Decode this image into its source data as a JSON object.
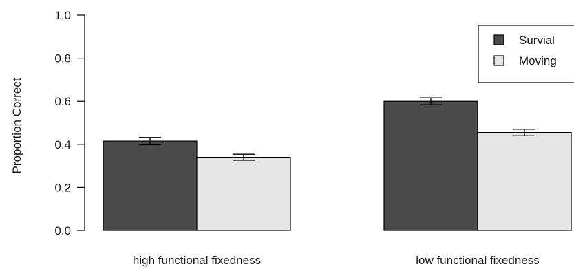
{
  "chart_data": {
    "type": "bar",
    "title": "",
    "xlabel": "",
    "ylabel": "Proportion Correct",
    "ylim": [
      0,
      1
    ],
    "yticks": [
      "0.0",
      "0.2",
      "0.4",
      "0.6",
      "0.8",
      "1.0"
    ],
    "categories": [
      "high functional fixedness",
      "low functional fixedness"
    ],
    "series": [
      {
        "name": "Survial",
        "color": "#4a4a4a",
        "values": [
          0.415,
          0.6
        ],
        "errors": [
          0.017,
          0.016
        ]
      },
      {
        "name": "Moving",
        "color": "#e6e6e6",
        "values": [
          0.34,
          0.455
        ],
        "errors": [
          0.014,
          0.015
        ]
      }
    ],
    "legend": {
      "position": "top-right"
    },
    "grid": false
  }
}
